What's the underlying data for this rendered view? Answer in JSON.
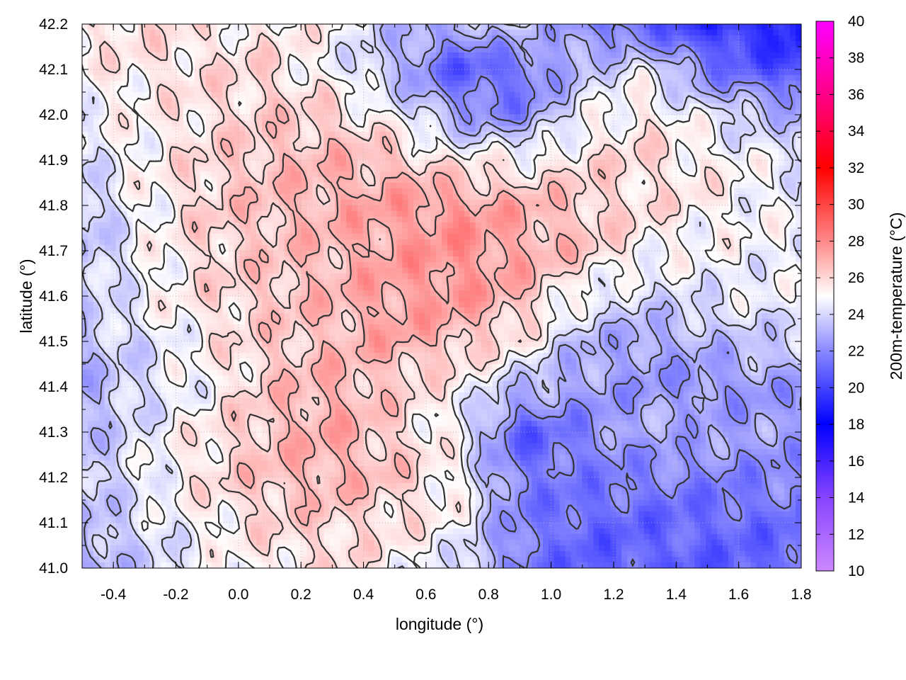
{
  "chart_data": {
    "type": "heatmap",
    "xlabel": "longitude (°)",
    "ylabel": "latitude (°)",
    "colorbar_label": "200m-temperature (°C)",
    "xlim": [
      -0.5,
      1.8
    ],
    "ylim": [
      41.0,
      42.2
    ],
    "x_ticks": [
      -0.4,
      -0.2,
      0.0,
      0.2,
      0.4,
      0.6,
      0.8,
      1.0,
      1.2,
      1.4,
      1.6,
      1.8
    ],
    "x_tick_labels": [
      "-0.4",
      "-0.2",
      "0.0",
      "0.2",
      "0.4",
      "0.6",
      "0.8",
      "1.0",
      "1.2",
      "1.4",
      "1.6",
      "1.8"
    ],
    "y_ticks": [
      41.0,
      41.1,
      41.2,
      41.3,
      41.4,
      41.5,
      41.6,
      41.7,
      41.8,
      41.9,
      42.0,
      42.1,
      42.2
    ],
    "y_tick_labels": [
      "41.0",
      "41.1",
      "41.2",
      "41.3",
      "41.4",
      "41.5",
      "41.6",
      "41.7",
      "41.8",
      "41.9",
      "42.0",
      "42.1",
      "42.2"
    ],
    "colorbar_range": [
      10,
      40
    ],
    "colorbar_ticks": [
      10,
      12,
      14,
      16,
      18,
      20,
      22,
      24,
      26,
      28,
      30,
      32,
      34,
      36,
      38,
      40
    ],
    "colorbar_tick_labels": [
      "10",
      "12",
      "14",
      "16",
      "18",
      "20",
      "22",
      "24",
      "26",
      "28",
      "30",
      "32",
      "34",
      "36",
      "38",
      "40"
    ],
    "colormap": [
      {
        "value": 10,
        "color": "#cc88ff"
      },
      {
        "value": 14,
        "color": "#8844ff"
      },
      {
        "value": 18,
        "color": "#0000ff"
      },
      {
        "value": 22,
        "color": "#8888ff"
      },
      {
        "value": 25,
        "color": "#ffffff"
      },
      {
        "value": 28,
        "color": "#ff8888"
      },
      {
        "value": 32,
        "color": "#ff0000"
      },
      {
        "value": 36,
        "color": "#ff0088"
      },
      {
        "value": 40,
        "color": "#ff00ff"
      }
    ],
    "grid": true,
    "contour_color": "#333333",
    "field": {
      "lon": [
        -0.5,
        -0.3,
        -0.1,
        0.1,
        0.3,
        0.5,
        0.7,
        0.9,
        1.1,
        1.3,
        1.5,
        1.7,
        1.8
      ],
      "lat": [
        41.0,
        41.1,
        41.2,
        41.3,
        41.4,
        41.5,
        41.6,
        41.7,
        41.8,
        41.9,
        42.0,
        42.1,
        42.2
      ],
      "values": [
        [
          22.8,
          23.8,
          24.6,
          25.4,
          25.8,
          25.2,
          24.2,
          21.6,
          20.8,
          20.8,
          20.8,
          20.9,
          20.9
        ],
        [
          23.0,
          24.2,
          25.2,
          26.0,
          26.2,
          25.8,
          25.0,
          21.8,
          21.0,
          21.0,
          21.0,
          21.2,
          21.2
        ],
        [
          23.4,
          24.6,
          25.8,
          26.6,
          27.0,
          26.4,
          25.2,
          21.6,
          21.6,
          21.8,
          21.8,
          21.9,
          22.0
        ],
        [
          23.2,
          24.4,
          25.6,
          26.6,
          27.2,
          26.2,
          24.8,
          20.6,
          21.8,
          23.0,
          22.8,
          22.6,
          22.6
        ],
        [
          23.0,
          24.0,
          25.0,
          26.4,
          27.0,
          26.2,
          25.2,
          23.4,
          22.6,
          22.4,
          22.2,
          22.4,
          22.6
        ],
        [
          23.4,
          24.2,
          25.4,
          26.2,
          26.6,
          27.2,
          26.6,
          25.6,
          23.2,
          22.6,
          23.2,
          23.8,
          23.8
        ],
        [
          23.8,
          24.8,
          25.8,
          26.4,
          26.8,
          27.4,
          27.6,
          26.8,
          24.8,
          24.0,
          24.4,
          24.6,
          24.4
        ],
        [
          23.2,
          24.8,
          26.0,
          26.4,
          26.8,
          27.4,
          27.8,
          27.2,
          26.4,
          25.2,
          24.8,
          24.8,
          24.6
        ],
        [
          23.4,
          25.0,
          26.2,
          26.6,
          27.0,
          27.4,
          27.6,
          27.0,
          26.4,
          25.8,
          25.4,
          24.8,
          24.6
        ],
        [
          24.2,
          25.2,
          26.0,
          26.6,
          26.8,
          26.6,
          25.4,
          25.2,
          25.8,
          26.0,
          25.4,
          24.6,
          24.4
        ],
        [
          24.8,
          25.2,
          25.8,
          26.2,
          26.2,
          24.8,
          22.6,
          21.8,
          24.6,
          25.6,
          24.4,
          23.4,
          23.0
        ],
        [
          25.2,
          25.6,
          25.8,
          26.0,
          24.8,
          23.2,
          20.6,
          21.2,
          23.4,
          24.6,
          21.6,
          20.4,
          19.8
        ],
        [
          25.6,
          25.8,
          25.4,
          25.4,
          25.2,
          23.4,
          22.8,
          24.2,
          21.8,
          20.8,
          19.4,
          19.0,
          18.8
        ]
      ]
    },
    "contour_levels": [
      22,
      23,
      24,
      25,
      26,
      27
    ]
  }
}
